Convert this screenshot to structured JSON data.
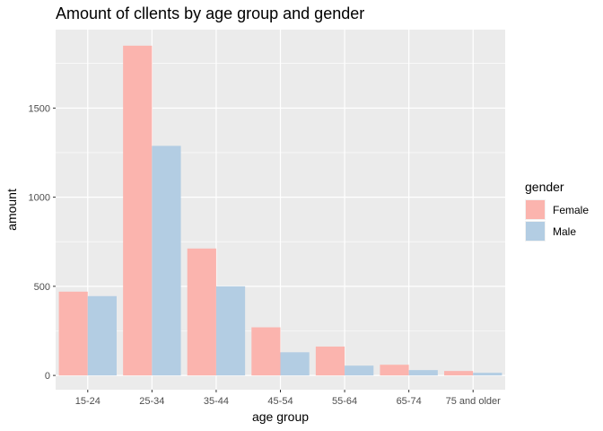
{
  "chart_data": {
    "type": "bar",
    "title": "Amount of cllents by age group and gender",
    "xlabel": "age group",
    "ylabel": "amount",
    "categories": [
      "15-24",
      "25-34",
      "35-44",
      "45-54",
      "55-64",
      "65-74",
      "75 and older"
    ],
    "series": [
      {
        "name": "Female",
        "color": "#fbb4ae",
        "values": [
          470,
          1850,
          712,
          270,
          162,
          60,
          25
        ]
      },
      {
        "name": "Male",
        "color": "#b3cde3",
        "values": [
          445,
          1288,
          500,
          130,
          55,
          30,
          15
        ]
      }
    ],
    "ylim": [
      -80,
      1940
    ],
    "yticks": [
      0,
      500,
      1000,
      1500
    ],
    "legend": {
      "title": "gender",
      "position": "right"
    },
    "grid": true,
    "panel_background": "#ebebeb"
  }
}
